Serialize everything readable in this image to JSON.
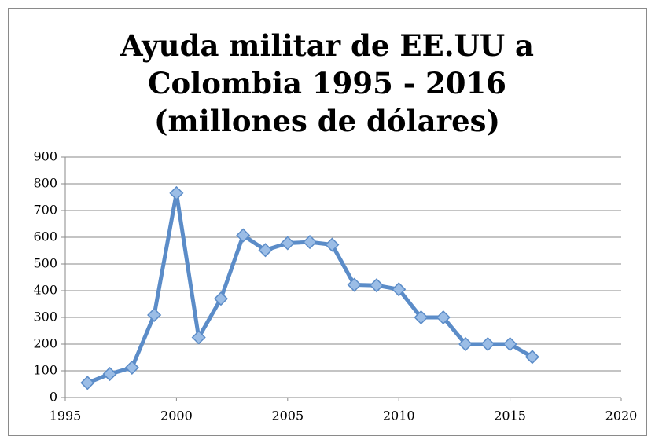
{
  "chart_data": {
    "type": "line",
    "title": "Ayuda militar de EE.UU a Colombia 1995 - 2016 (millones de dólares)",
    "x": [
      1996,
      1997,
      1998,
      1999,
      2000,
      2001,
      2002,
      2003,
      2004,
      2005,
      2006,
      2007,
      2008,
      2009,
      2010,
      2011,
      2012,
      2013,
      2014,
      2015,
      2016
    ],
    "values": [
      55,
      88,
      112,
      309,
      765,
      225,
      370,
      607,
      552,
      578,
      582,
      572,
      422,
      420,
      405,
      300,
      300,
      200,
      200,
      200,
      152
    ],
    "color": "#5b8cc8",
    "xlim": [
      1995,
      2020
    ],
    "xticks": [
      1995,
      2000,
      2005,
      2010,
      2015,
      2020
    ],
    "ylim": [
      0,
      900
    ],
    "yticks": [
      0,
      100,
      200,
      300,
      400,
      500,
      600,
      700,
      800,
      900
    ],
    "grid": true
  }
}
